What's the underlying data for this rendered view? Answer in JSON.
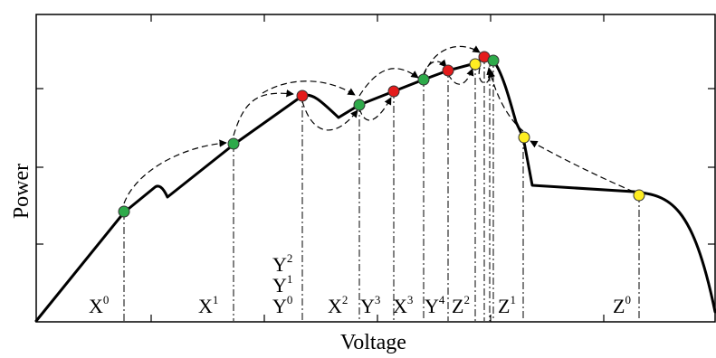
{
  "axes": {
    "xlabel": "Voltage",
    "ylabel": "Power"
  },
  "colors": {
    "curve": "#000000",
    "green_point": "#2eaa4a",
    "red_point": "#e41c1c",
    "yellow_point": "#ffee22",
    "point_outline": "#333333"
  },
  "labels": {
    "x0": {
      "base": "X",
      "sup": "0"
    },
    "x1": {
      "base": "X",
      "sup": "1"
    },
    "x2": {
      "base": "X",
      "sup": "2"
    },
    "x3": {
      "base": "X",
      "sup": "3"
    },
    "y0": {
      "base": "Y",
      "sup": "0"
    },
    "y1": {
      "base": "Y",
      "sup": "1"
    },
    "y2": {
      "base": "Y",
      "sup": "2"
    },
    "y3": {
      "base": "Y",
      "sup": "3"
    },
    "y4": {
      "base": "Y",
      "sup": "4"
    },
    "z0": {
      "base": "Z",
      "sup": "0"
    },
    "z1": {
      "base": "Z",
      "sup": "1"
    },
    "z2": {
      "base": "Z",
      "sup": "2"
    }
  }
}
